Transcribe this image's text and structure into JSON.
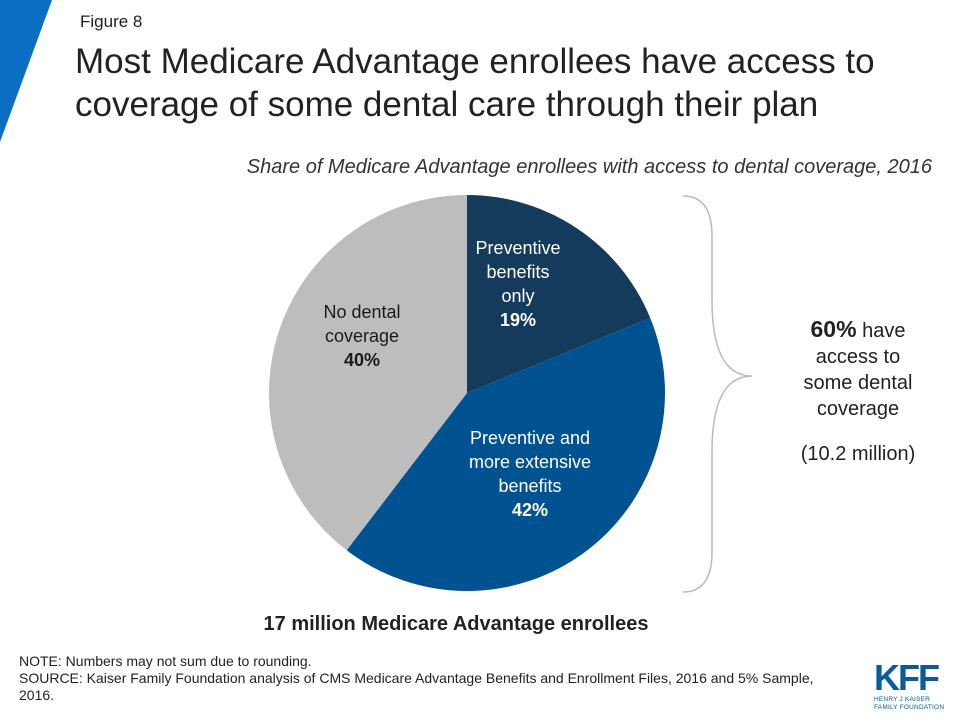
{
  "figure_label": "Figure 8",
  "title": "Most Medicare Advantage enrollees have access to coverage of some dental care through their plan",
  "colors": {
    "accent": "#0a6fc2",
    "preventive_only": "#143a5c",
    "preventive_extensive": "#005291",
    "no_coverage": "#bdbdbd",
    "brace": "#bbbbbb"
  },
  "chart_data": {
    "type": "pie",
    "title": "Share of Medicare Advantage enrollees with access to dental coverage, 2016",
    "slices": [
      {
        "label_lines": [
          "Preventive",
          "benefits",
          "only"
        ],
        "value": 19,
        "value_label": "19%",
        "color": "#143a5c"
      },
      {
        "label_lines": [
          "Preventive and",
          "more extensive",
          "benefits"
        ],
        "value": 42,
        "value_label": "42%",
        "color": "#005291"
      },
      {
        "label_lines": [
          "No dental",
          "coverage"
        ],
        "value": 40,
        "value_label": "40%",
        "color": "#bdbdbd"
      }
    ],
    "annotation": {
      "bold": "60%",
      "text_lines": [
        "have",
        "access to",
        "some dental",
        "coverage"
      ],
      "sub": "(10.2 million)"
    },
    "total_label": "17 million Medicare Advantage enrollees"
  },
  "notes": {
    "note": "NOTE: Numbers may not sum due to rounding.",
    "source": "SOURCE: Kaiser Family Foundation analysis of CMS Medicare Advantage Benefits and Enrollment Files, 2016 and 5% Sample, 2016."
  },
  "logo": {
    "name": "KFF",
    "line1": "HENRY J KAISER",
    "line2": "FAMILY FOUNDATION"
  }
}
